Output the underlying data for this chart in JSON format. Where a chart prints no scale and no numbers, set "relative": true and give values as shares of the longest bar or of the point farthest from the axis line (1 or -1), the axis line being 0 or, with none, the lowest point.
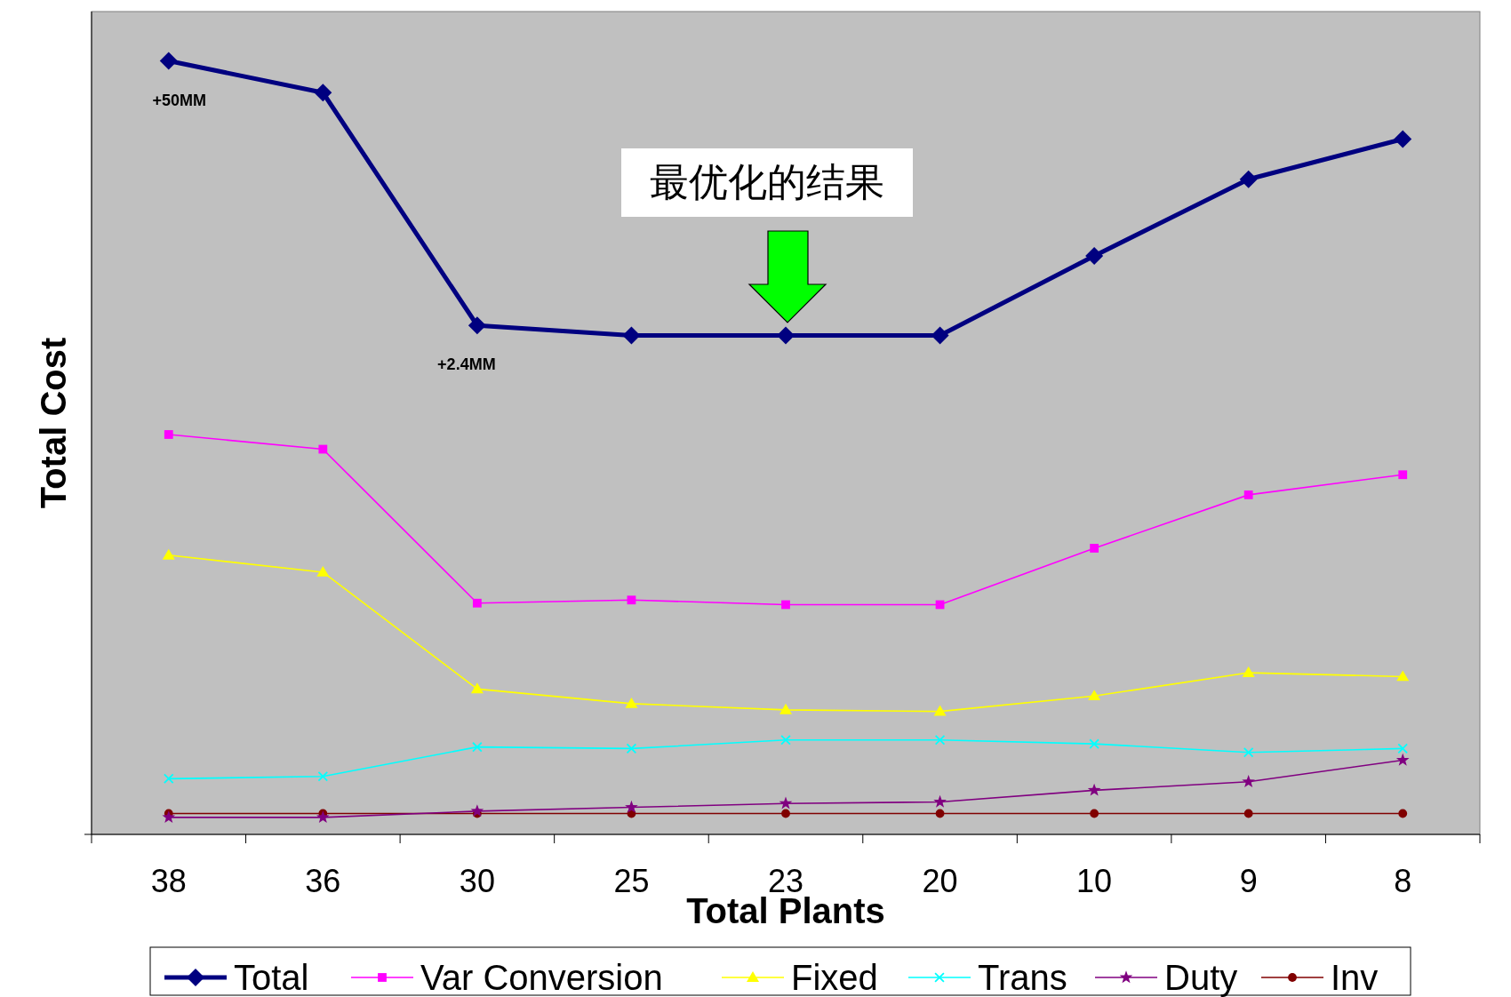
{
  "chart_data": {
    "type": "line",
    "relative": true,
    "xlabel": "Total Plants",
    "ylabel": "Total Cost",
    "categories": [
      "38",
      "36",
      "30",
      "25",
      "23",
      "20",
      "10",
      "9",
      "8"
    ],
    "legend": "bottom",
    "series": [
      {
        "name": "Total",
        "color": "#000080",
        "marker": "diamond",
        "values": [
          1.0,
          0.959,
          0.658,
          0.645,
          0.645,
          0.645,
          0.748,
          0.847,
          0.899
        ]
      },
      {
        "name": "Var Conversion",
        "color": "#ff00ff",
        "marker": "square",
        "values": [
          0.517,
          0.498,
          0.299,
          0.303,
          0.297,
          0.297,
          0.37,
          0.439,
          0.465
        ]
      },
      {
        "name": "Fixed",
        "color": "#ffff00",
        "marker": "triangle",
        "values": [
          0.361,
          0.339,
          0.188,
          0.169,
          0.161,
          0.159,
          0.179,
          0.209,
          0.204
        ]
      },
      {
        "name": "Trans",
        "color": "#00ffff",
        "marker": "cross",
        "values": [
          0.072,
          0.075,
          0.113,
          0.111,
          0.122,
          0.122,
          0.117,
          0.106,
          0.111
        ]
      },
      {
        "name": "Duty",
        "color": "#800080",
        "marker": "star",
        "values": [
          0.022,
          0.022,
          0.03,
          0.035,
          0.04,
          0.042,
          0.057,
          0.068,
          0.096
        ]
      },
      {
        "name": "Inv",
        "color": "#800000",
        "marker": "circle",
        "values": [
          0.027,
          0.027,
          0.027,
          0.027,
          0.027,
          0.027,
          0.027,
          0.027,
          0.027
        ]
      }
    ],
    "annotations": [
      {
        "text": "+50MM",
        "x": "38",
        "y": 1.0
      },
      {
        "text": "+2.4MM",
        "x": "30",
        "y": 0.658
      },
      "最优化的结果"
    ]
  }
}
